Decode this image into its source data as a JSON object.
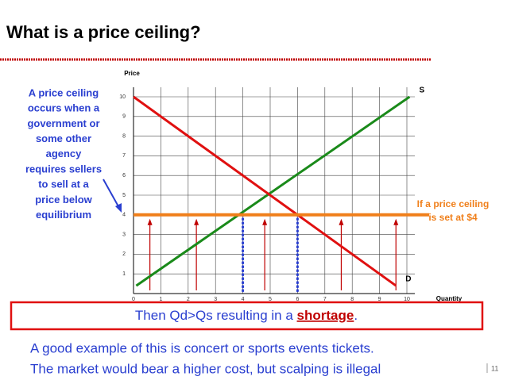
{
  "title": "What is a price ceiling?",
  "callout_left": [
    "A price ceiling",
    "occurs when a",
    "government or",
    "some other",
    "agency",
    "requires sellers",
    "to sell at a",
    "price below",
    "equilibrium"
  ],
  "callout_right": [
    "If a price ceiling",
    "is set at $4"
  ],
  "box_text": [
    "Then Qd>Qs resulting in a ",
    "shortage",
    "."
  ],
  "footer_lines": [
    "A good example of this is concert or sports events tickets.",
    "The market would bear a higher cost, but scalping is illegal"
  ],
  "page_number": "11",
  "chart_data": {
    "type": "line",
    "xlabel": "Quantity",
    "ylabel": "Price",
    "xlim": [
      0,
      10
    ],
    "ylim": [
      0,
      10
    ],
    "xticks": [
      0,
      1,
      2,
      3,
      4,
      5,
      6,
      7,
      8,
      9,
      10
    ],
    "yticks": [
      1,
      2,
      3,
      4,
      5,
      6,
      7,
      8,
      9,
      10
    ],
    "grid": true,
    "series": [
      {
        "name": "S",
        "color": "#1a8a1a",
        "x": [
          0.1,
          10.1
        ],
        "values": [
          0.4,
          10
        ]
      },
      {
        "name": "D",
        "color": "#e01010",
        "x": [
          0,
          9.6
        ],
        "values": [
          10,
          0.4
        ]
      }
    ],
    "ceiling": {
      "value": 4,
      "color": "#f07f1a"
    },
    "quantity_markers": {
      "values": [
        4,
        6
      ],
      "color": "#2a3fd0"
    }
  }
}
